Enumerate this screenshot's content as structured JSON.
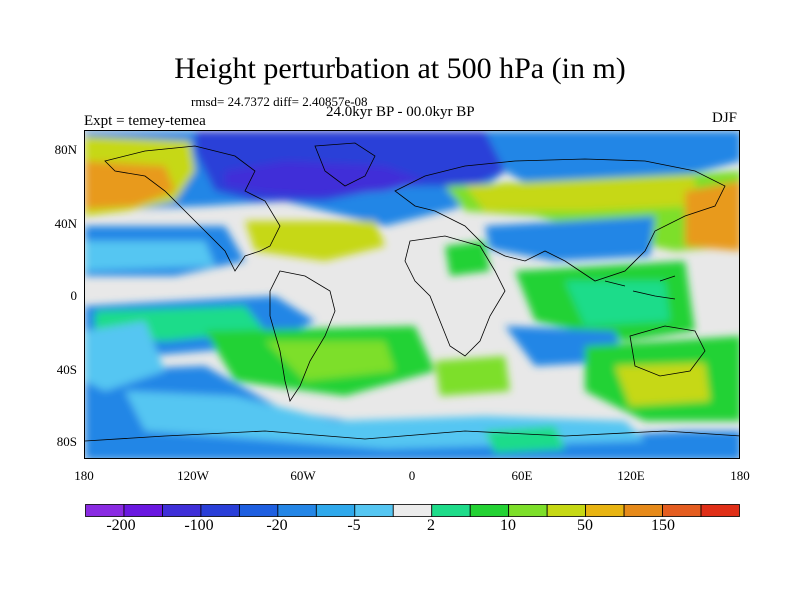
{
  "title": "Height perturbation at 500 hPa (in m)",
  "stats": "rmsd= 24.7372 diff= 2.40857e-08",
  "subtitle": "24.0kyr BP - 00.0kyr BP",
  "experiment": "Expt = temey-temea",
  "season": "DJF",
  "lat_labels": [
    "80N",
    "40N",
    "0",
    "40S",
    "80S"
  ],
  "lon_labels": [
    "180",
    "120W",
    "60W",
    "0",
    "60E",
    "120E",
    "180"
  ],
  "colorbar": {
    "labels": [
      "-200",
      "-100",
      "-20",
      "-5",
      "2",
      "10",
      "50",
      "150"
    ],
    "colors": [
      "#8a2be2",
      "#6a18e0",
      "#3f2fd8",
      "#2a3fd8",
      "#1e5fe0",
      "#2486e6",
      "#2fa9ec",
      "#55c6f2",
      "#ececec",
      "#1edc8a",
      "#24d234",
      "#7ddf2a",
      "#c6d814",
      "#e8b412",
      "#e68a1a",
      "#e45d20",
      "#e02f18"
    ]
  },
  "field_colors": {
    "background": "#e8e8e8",
    "strong_negative": "#3f2fd8",
    "negative": "#2486e6",
    "weak_negative": "#55c6f2",
    "weak_positive": "#1edc8a",
    "positive": "#7ddf2a",
    "strong_positive": "#c6d814",
    "very_strong_positive": "#e89a1a"
  }
}
